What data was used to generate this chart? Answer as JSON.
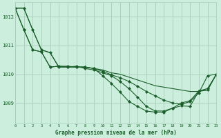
{
  "background_color": "#cceedd",
  "grid_color": "#aaccbb",
  "line_color": "#1a5e2a",
  "marker_color": "#1a5e2a",
  "title": "Graphe pression niveau de la mer (hPa)",
  "xlim": [
    0,
    23
  ],
  "ylim": [
    1008.3,
    1012.5
  ],
  "yticks": [
    1009,
    1010,
    1011,
    1012
  ],
  "xticks": [
    0,
    1,
    2,
    3,
    4,
    5,
    6,
    7,
    8,
    9,
    10,
    11,
    12,
    13,
    14,
    15,
    16,
    17,
    18,
    19,
    20,
    21,
    22,
    23
  ],
  "series": [
    {
      "data": [
        1012.3,
        1012.3,
        1011.55,
        1010.85,
        1010.75,
        1010.25,
        1010.25,
        1010.25,
        1010.25,
        1010.2,
        1010.15,
        1010.05,
        1010.0,
        1009.9,
        1009.8,
        1009.7,
        1009.6,
        1009.55,
        1009.5,
        1009.45,
        1009.4,
        1009.4,
        1009.45,
        1010.0
      ],
      "markers": false
    },
    {
      "data": [
        1012.3,
        1012.3,
        1011.55,
        1010.85,
        1010.75,
        1010.25,
        1010.25,
        1010.25,
        1010.25,
        1010.2,
        1010.1,
        1009.98,
        1009.88,
        1009.75,
        1009.58,
        1009.4,
        1009.25,
        1009.1,
        1009.0,
        1008.95,
        1009.05,
        1009.35,
        1009.95,
        1010.0
      ],
      "markers": true
    },
    {
      "data": [
        1012.3,
        1011.55,
        1010.85,
        1010.78,
        1010.25,
        1010.28,
        1010.25,
        1010.28,
        1010.2,
        1010.15,
        1010.05,
        1009.95,
        1009.75,
        1009.5,
        1009.2,
        1008.88,
        1008.72,
        1008.72,
        1008.82,
        1009.0,
        1009.08,
        1009.42,
        1009.5,
        1010.0
      ],
      "markers": true
    },
    {
      "data": [
        1012.3,
        1011.55,
        1010.85,
        1010.78,
        1010.25,
        1010.28,
        1010.28,
        1010.25,
        1010.25,
        1010.2,
        1009.95,
        1009.68,
        1009.38,
        1009.05,
        1008.88,
        1008.72,
        1008.68,
        1008.68,
        1008.82,
        1008.9,
        1008.88,
        1009.42,
        1009.45,
        1010.0
      ],
      "markers": true
    }
  ]
}
